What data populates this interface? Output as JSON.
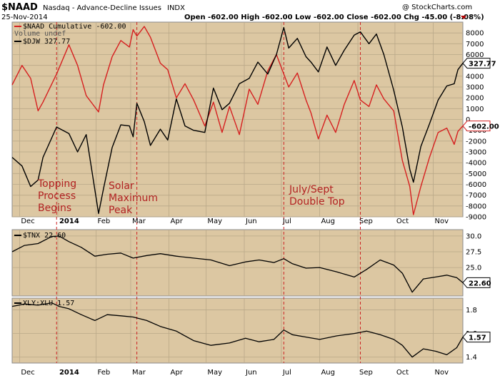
{
  "header": {
    "symbol": "$NAAD",
    "name": "Nasdaq - Advance-Decline Issues",
    "exchange": "INDX",
    "date": "25-Nov-2014",
    "ohlc": "Open -602.00  High -602.00  Low -602.00  Close -602.00  Chg -45.00 (-8.08%)",
    "watermark": "@ StockCharts.com"
  },
  "colors": {
    "panel_bg": "#dcc7a2",
    "red_series": "#d62020",
    "black_series": "#000000",
    "annotation": "#b22222"
  },
  "chart_data": [
    {
      "type": "line",
      "panel": "main",
      "series": [
        {
          "name": "$NAAD Cumulative -602.00",
          "axis": "right",
          "last_label": "-602.00",
          "x": [
            "2013-11-25",
            "2013-12-03",
            "2013-12-10",
            "2013-12-16",
            "2013-12-20",
            "2013-12-31",
            "2014-01-10",
            "2014-01-17",
            "2014-01-24",
            "2014-02-03",
            "2014-02-07",
            "2014-02-14",
            "2014-02-21",
            "2014-02-28",
            "2014-03-03",
            "2014-03-06",
            "2014-03-12",
            "2014-03-17",
            "2014-03-25",
            "2014-03-31",
            "2014-04-07",
            "2014-04-14",
            "2014-04-21",
            "2014-04-30",
            "2014-05-07",
            "2014-05-14",
            "2014-05-20",
            "2014-05-28",
            "2014-06-05",
            "2014-06-12",
            "2014-06-20",
            "2014-06-27",
            "2014-07-03",
            "2014-07-07",
            "2014-07-14",
            "2014-07-21",
            "2014-07-25",
            "2014-07-31",
            "2014-08-07",
            "2014-08-14",
            "2014-08-21",
            "2014-08-29",
            "2014-09-03",
            "2014-09-10",
            "2014-09-16",
            "2014-09-22",
            "2014-09-30",
            "2014-10-07",
            "2014-10-13",
            "2014-10-16",
            "2014-10-22",
            "2014-10-29",
            "2014-11-05",
            "2014-11-12",
            "2014-11-18",
            "2014-11-21",
            "2014-11-25"
          ],
          "values": [
            3200,
            5000,
            3800,
            800,
            1600,
            4200,
            6900,
            5000,
            2200,
            700,
            3200,
            5800,
            7300,
            6700,
            8300,
            7700,
            8600,
            7600,
            5200,
            4600,
            2000,
            3300,
            1800,
            -600,
            1600,
            -1200,
            1200,
            -1400,
            2800,
            1400,
            4500,
            6000,
            4200,
            3000,
            4300,
            1800,
            600,
            -1800,
            400,
            -1200,
            1400,
            3600,
            1800,
            1200,
            3200,
            1900,
            800,
            -3800,
            -6200,
            -8800,
            -6200,
            -3500,
            -1200,
            -800,
            -2300,
            -1100,
            -602
          ]
        },
        {
          "name": "$DJW 327.77",
          "axis": "left",
          "last_label": "327.77",
          "x": [
            "2013-11-25",
            "2013-12-03",
            "2013-12-10",
            "2013-12-16",
            "2013-12-20",
            "2013-12-31",
            "2014-01-10",
            "2014-01-17",
            "2014-01-24",
            "2014-02-03",
            "2014-02-07",
            "2014-02-14",
            "2014-02-21",
            "2014-02-28",
            "2014-03-03",
            "2014-03-06",
            "2014-03-12",
            "2014-03-17",
            "2014-03-25",
            "2014-03-31",
            "2014-04-07",
            "2014-04-14",
            "2014-04-21",
            "2014-04-30",
            "2014-05-07",
            "2014-05-14",
            "2014-05-20",
            "2014-05-28",
            "2014-06-05",
            "2014-06-12",
            "2014-06-20",
            "2014-06-27",
            "2014-07-03",
            "2014-07-07",
            "2014-07-14",
            "2014-07-21",
            "2014-07-25",
            "2014-07-31",
            "2014-08-07",
            "2014-08-14",
            "2014-08-21",
            "2014-08-29",
            "2014-09-03",
            "2014-09-10",
            "2014-09-16",
            "2014-09-22",
            "2014-09-30",
            "2014-10-07",
            "2014-10-13",
            "2014-10-16",
            "2014-10-22",
            "2014-10-29",
            "2014-11-05",
            "2014-11-12",
            "2014-11-18",
            "2014-11-21",
            "2014-11-25"
          ],
          "values": [
            -3500,
            -4300,
            -6200,
            -5600,
            -3500,
            -700,
            -1300,
            -3000,
            -1400,
            -8700,
            -6400,
            -2600,
            -500,
            -600,
            -1600,
            1500,
            -200,
            -2400,
            -900,
            -1900,
            1900,
            -600,
            -1000,
            -1200,
            2900,
            900,
            1500,
            3300,
            3800,
            5300,
            4200,
            6000,
            8500,
            6600,
            7500,
            5800,
            5300,
            4400,
            6700,
            5000,
            6400,
            7800,
            8100,
            7000,
            7900,
            6000,
            2700,
            -700,
            -4600,
            -5800,
            -2500,
            -400,
            1800,
            3100,
            3300,
            4600,
            5200
          ]
        }
      ],
      "ylim": [
        -9000,
        9000
      ],
      "y_ticks": [
        8000,
        7000,
        6000,
        5000,
        4000,
        3000,
        2000,
        1000,
        0,
        -1000,
        -2000,
        -3000,
        -4000,
        -5000,
        -6000,
        -7000,
        -8000,
        -9000
      ],
      "legend": [
        "Volume undef"
      ],
      "annotations": [
        "Topping Process Begins",
        "Solar Maximum Peak",
        "July/Sept Double Top"
      ],
      "grid": true
    },
    {
      "type": "line",
      "panel": "middle",
      "series": [
        {
          "name": "$TNX 22.60",
          "last_label": "22.60",
          "x": [
            "2013-11-25",
            "2013-12-05",
            "2013-12-16",
            "2013-12-27",
            "2014-01-02",
            "2014-01-10",
            "2014-01-20",
            "2014-01-31",
            "2014-02-10",
            "2014-02-21",
            "2014-03-03",
            "2014-03-14",
            "2014-03-25",
            "2014-04-07",
            "2014-04-21",
            "2014-05-05",
            "2014-05-20",
            "2014-06-02",
            "2014-06-13",
            "2014-06-25",
            "2014-07-03",
            "2014-07-10",
            "2014-07-21",
            "2014-08-01",
            "2014-08-15",
            "2014-08-29",
            "2014-09-08",
            "2014-09-19",
            "2014-09-30",
            "2014-10-07",
            "2014-10-15",
            "2014-10-24",
            "2014-11-03",
            "2014-11-12",
            "2014-11-20",
            "2014-11-25"
          ],
          "values": [
            27.5,
            28.5,
            28.8,
            29.9,
            30.0,
            29.1,
            28.2,
            26.8,
            27.1,
            27.3,
            26.5,
            26.9,
            27.2,
            26.8,
            26.5,
            26.2,
            25.3,
            25.9,
            26.2,
            25.8,
            26.4,
            25.6,
            24.9,
            25.0,
            24.3,
            23.5,
            24.7,
            26.2,
            25.4,
            24.1,
            21.1,
            23.2,
            23.5,
            23.8,
            23.4,
            22.6
          ]
        }
      ],
      "ylim": [
        20.5,
        31.0
      ],
      "y_ticks": [
        30.0,
        27.5,
        25.0
      ],
      "grid": true
    },
    {
      "type": "line",
      "panel": "bottom",
      "series": [
        {
          "name": "XLY:XLU 1.57",
          "last_label": "1.57",
          "x": [
            "2013-11-25",
            "2013-12-05",
            "2013-12-16",
            "2013-12-27",
            "2014-01-02",
            "2014-01-10",
            "2014-01-20",
            "2014-01-31",
            "2014-02-10",
            "2014-02-21",
            "2014-03-03",
            "2014-03-14",
            "2014-03-25",
            "2014-04-07",
            "2014-04-21",
            "2014-05-05",
            "2014-05-20",
            "2014-06-02",
            "2014-06-13",
            "2014-06-25",
            "2014-07-03",
            "2014-07-10",
            "2014-07-21",
            "2014-08-01",
            "2014-08-15",
            "2014-08-29",
            "2014-09-08",
            "2014-09-19",
            "2014-09-30",
            "2014-10-07",
            "2014-10-15",
            "2014-10-24",
            "2014-11-03",
            "2014-11-12",
            "2014-11-20",
            "2014-11-25"
          ],
          "values": [
            1.83,
            1.85,
            1.84,
            1.86,
            1.83,
            1.81,
            1.76,
            1.71,
            1.76,
            1.75,
            1.74,
            1.71,
            1.66,
            1.62,
            1.54,
            1.5,
            1.52,
            1.56,
            1.53,
            1.55,
            1.63,
            1.59,
            1.57,
            1.55,
            1.58,
            1.6,
            1.62,
            1.59,
            1.55,
            1.5,
            1.4,
            1.47,
            1.45,
            1.42,
            1.48,
            1.57
          ]
        }
      ],
      "ylim": [
        1.35,
        1.9
      ],
      "y_ticks": [
        1.8,
        1.6,
        1.4
      ],
      "grid": true
    }
  ],
  "x_axis": {
    "ticks": [
      {
        "label": "Dec",
        "date": "2013-12-01"
      },
      {
        "label": "2014",
        "date": "2014-01-01",
        "bold": true
      },
      {
        "label": "Feb",
        "date": "2014-02-01"
      },
      {
        "label": "Mar",
        "date": "2014-03-01"
      },
      {
        "label": "Apr",
        "date": "2014-04-01"
      },
      {
        "label": "May",
        "date": "2014-05-01"
      },
      {
        "label": "Jun",
        "date": "2014-06-01"
      },
      {
        "label": "Jul",
        "date": "2014-07-01"
      },
      {
        "label": "Aug",
        "date": "2014-08-01"
      },
      {
        "label": "Sep",
        "date": "2014-09-01"
      },
      {
        "label": "Oct",
        "date": "2014-10-01"
      },
      {
        "label": "Nov",
        "date": "2014-11-01"
      }
    ],
    "range": [
      "2013-11-25",
      "2014-11-25"
    ],
    "marker_dates": [
      "2013-12-31",
      "2014-03-06",
      "2014-07-03",
      "2014-09-03"
    ]
  }
}
